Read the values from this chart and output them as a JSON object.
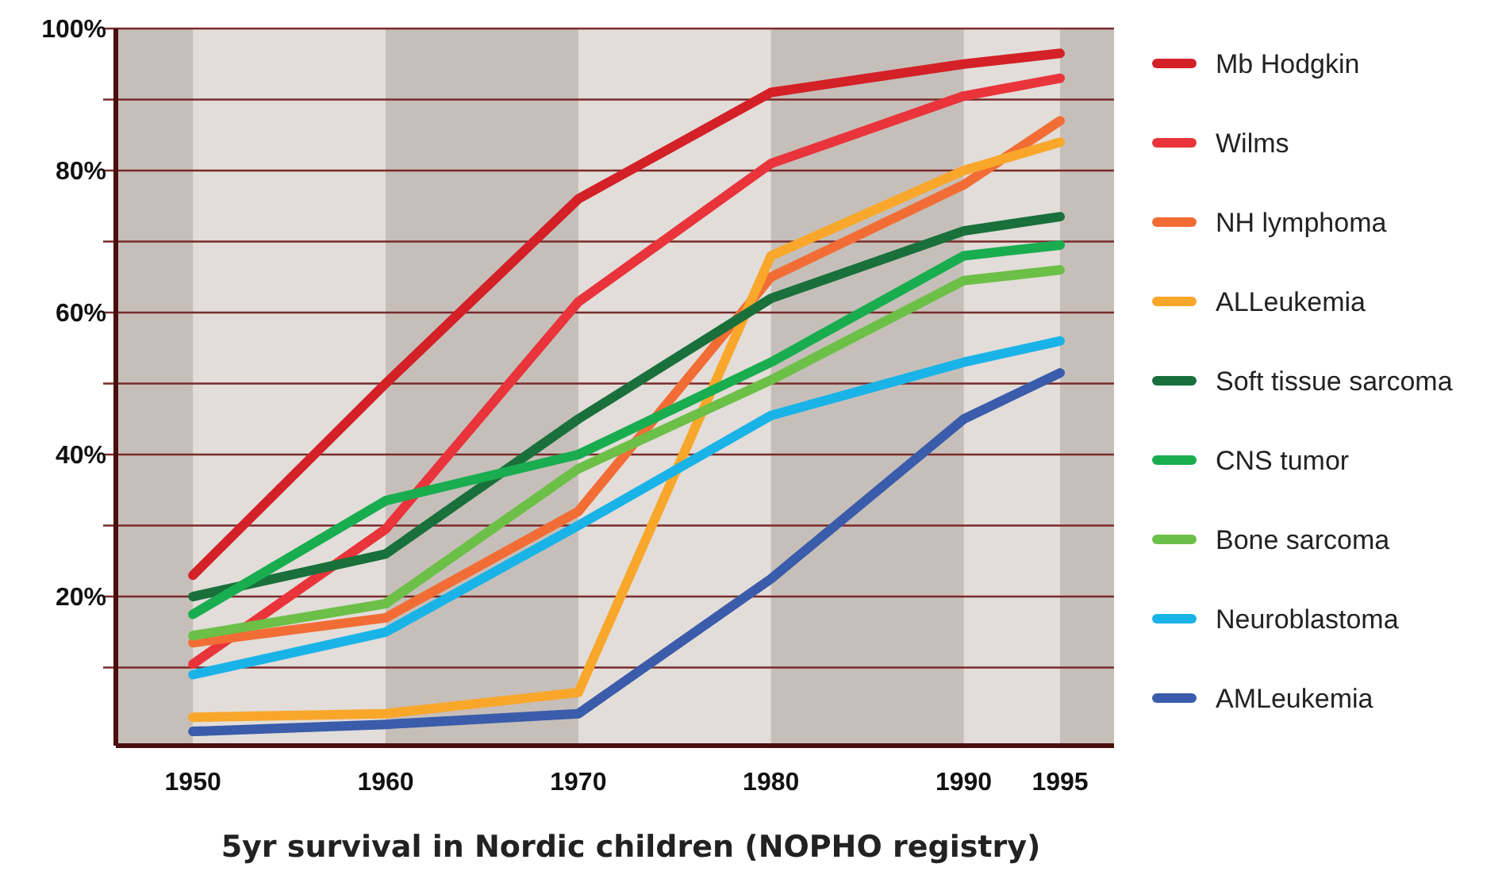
{
  "chart_data": {
    "type": "line",
    "xlabel": "5yr survival in Nordic children  (NOPHO registry)",
    "x": [
      1950,
      1960,
      1970,
      1980,
      1990,
      1995
    ],
    "xlim": [
      1946,
      1997.8
    ],
    "xticks": [
      1950,
      1960,
      1970,
      1980,
      1990,
      1995
    ],
    "ylim": [
      -1,
      100
    ],
    "yticks": [
      {
        "value": 10,
        "label": null
      },
      {
        "value": 20,
        "label": "20%"
      },
      {
        "value": 30,
        "label": null
      },
      {
        "value": 40,
        "label": "40%"
      },
      {
        "value": 50,
        "label": null
      },
      {
        "value": 60,
        "label": "60%"
      },
      {
        "value": 70,
        "label": null
      },
      {
        "value": 80,
        "label": "80%"
      },
      {
        "value": 90,
        "label": null
      },
      {
        "value": 100,
        "label": "100%"
      }
    ],
    "grid": "y",
    "legend": "right",
    "marker": "none",
    "line_style": "solid",
    "bands": [
      {
        "axis": "x",
        "from": 1946,
        "to": 1950,
        "color": "#c6bfb9"
      },
      {
        "axis": "x",
        "from": 1960,
        "to": 1970,
        "color": "#c6bfb9"
      },
      {
        "axis": "x",
        "from": 1980,
        "to": 1990,
        "color": "#c6bfb9"
      },
      {
        "axis": "x",
        "from": 1995,
        "to": 1997.8,
        "color": "#c6bfb9"
      }
    ],
    "series": [
      {
        "name": "Mb Hodgkin",
        "color": "#d42027",
        "values": [
          23,
          50,
          76,
          91,
          95,
          96.5
        ]
      },
      {
        "name": "Wilms",
        "color": "#e9343b",
        "values": [
          10.5,
          29.5,
          61.5,
          81,
          90.5,
          93
        ]
      },
      {
        "name": "NH lymphoma",
        "color": "#f26d35",
        "values": [
          13.5,
          17,
          32,
          65,
          78,
          87
        ]
      },
      {
        "name": "ALLeukemia",
        "color": "#f9a72b",
        "values": [
          3,
          3.5,
          6.5,
          68,
          80,
          84
        ]
      },
      {
        "name": "Soft tissue sarcoma",
        "color": "#19703b",
        "values": [
          20,
          26,
          45,
          62,
          71.5,
          73.5
        ]
      },
      {
        "name": "CNS tumor",
        "color": "#19ad50",
        "values": [
          17.5,
          33.5,
          40,
          53,
          68,
          69.5
        ]
      },
      {
        "name": "Bone sarcoma",
        "color": "#6cbf47",
        "values": [
          14.5,
          19,
          38,
          50.5,
          64.5,
          66
        ]
      },
      {
        "name": "Neuroblastoma",
        "color": "#1ab3e8",
        "values": [
          9,
          15,
          30,
          45.5,
          53,
          56
        ]
      },
      {
        "name": "AMLeukemia",
        "color": "#3a5caa",
        "values": [
          1,
          2,
          3.5,
          22.5,
          45,
          51.5
        ]
      }
    ]
  }
}
